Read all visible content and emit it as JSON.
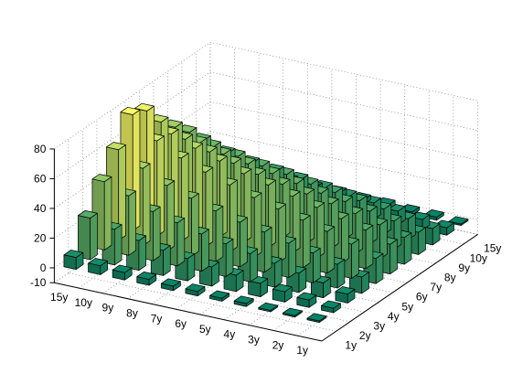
{
  "chart_data": {
    "type": "bar3d",
    "title": "",
    "xlabel": "",
    "ylabel": "",
    "zlabel": "",
    "colormap": "summer",
    "colormap_low": "#008066",
    "colormap_high": "#ffff66",
    "y_categories": [
      "15y",
      "10y",
      "9y",
      "8y",
      "7y",
      "6y",
      "5y",
      "4y",
      "3y",
      "2y",
      "1y"
    ],
    "x_categories": [
      "1y",
      "2y",
      "3y",
      "4y",
      "5y",
      "6y",
      "7y",
      "8y",
      "9y",
      "10y",
      "15y"
    ],
    "zlim": [
      -10,
      80
    ],
    "zticks": [
      -10,
      0,
      20,
      40,
      60,
      80
    ],
    "grid": true,
    "series": [
      {
        "values": [
          8,
          28,
          46,
          61,
          78,
          74,
          60,
          50,
          40,
          28,
          9
        ]
      },
      {
        "values": [
          6,
          24,
          40,
          52,
          64,
          62,
          52,
          43,
          34,
          23,
          7
        ]
      },
      {
        "values": [
          5,
          20,
          33,
          44,
          56,
          56,
          47,
          39,
          31,
          20,
          6
        ]
      },
      {
        "values": [
          4,
          17,
          29,
          39,
          50,
          51,
          43,
          36,
          28,
          18,
          5
        ]
      },
      {
        "values": [
          3,
          15,
          25,
          34,
          45,
          46,
          39,
          33,
          26,
          16,
          4
        ]
      },
      {
        "values": [
          3,
          13,
          22,
          30,
          40,
          42,
          36,
          30,
          23,
          14,
          4
        ]
      },
      {
        "values": [
          2,
          11,
          19,
          27,
          36,
          38,
          33,
          27,
          21,
          12,
          3
        ]
      },
      {
        "values": [
          2,
          9,
          16,
          23,
          32,
          34,
          30,
          25,
          19,
          11,
          3
        ]
      },
      {
        "values": [
          1,
          7,
          13,
          20,
          28,
          30,
          27,
          22,
          17,
          9,
          2
        ]
      },
      {
        "values": [
          1,
          5,
          10,
          16,
          23,
          26,
          23,
          19,
          14,
          7,
          2
        ]
      },
      {
        "values": [
          1,
          3,
          6,
          11,
          17,
          20,
          18,
          15,
          11,
          5,
          1
        ]
      }
    ]
  }
}
